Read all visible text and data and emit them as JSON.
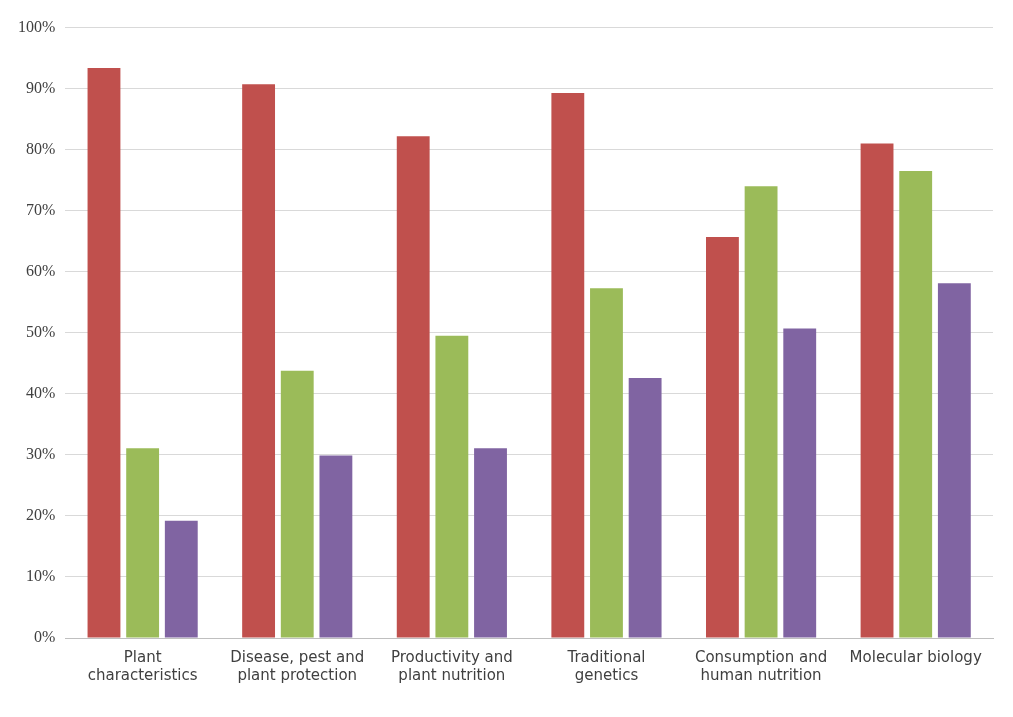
{
  "chart_data": {
    "type": "bar",
    "categories": [
      "Plant characteristics",
      "Disease, pest and plant protection",
      "Productivity and plant nutrition",
      "Traditional genetics",
      "Consumption and human nutrition",
      "Molecular biology"
    ],
    "series": [
      {
        "color": "#c0504d",
        "values": [
          93.4,
          90.7,
          82.2,
          89.3,
          65.7,
          81.0
        ]
      },
      {
        "color": "#9bbb59",
        "values": [
          31.1,
          43.8,
          49.5,
          57.3,
          74.0,
          76.5
        ]
      },
      {
        "color": "#8064a2",
        "values": [
          19.2,
          29.9,
          31.1,
          42.6,
          50.7,
          58.1
        ]
      }
    ],
    "ylim": [
      0,
      100
    ],
    "yticks": [
      {
        "value": 0,
        "label": "0%"
      },
      {
        "value": 10,
        "label": "10%"
      },
      {
        "value": 20,
        "label": "20%"
      },
      {
        "value": 30,
        "label": "30%"
      },
      {
        "value": 40,
        "label": "40%"
      },
      {
        "value": 50,
        "label": "50%"
      },
      {
        "value": 60,
        "label": "60%"
      },
      {
        "value": 70,
        "label": "70%"
      },
      {
        "value": 80,
        "label": "80%"
      },
      {
        "value": 90,
        "label": "90%"
      },
      {
        "value": 100,
        "label": "100%"
      }
    ],
    "grid": "y"
  }
}
